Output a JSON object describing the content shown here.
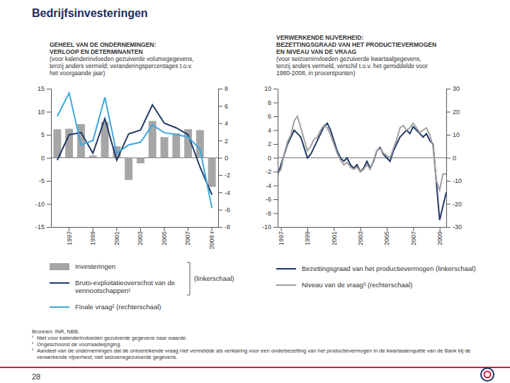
{
  "page": {
    "title": "Bedrijfsinvesteringen",
    "sources": "Bronnen: INR, NBB.",
    "footnotes": [
      {
        "marker": "¹",
        "text": "Niet voor kalenderinvloeden gezuiverde gegevens naar waarde."
      },
      {
        "marker": "²",
        "text": "Ongeschoond de voorraadwijziging."
      },
      {
        "marker": "³",
        "text": "Aandeel van de ondernemingen dat de ontoereikende vraag niet vermeldde als verklaring voor een onderbezetting van het productievermogen in de kwartaalenquête van de Bank bij de verwerkende nijverheid; niet seizoensgezuiverde gegevens."
      }
    ],
    "page_number": 28
  },
  "chart_data": [
    {
      "type": "bar",
      "title": [
        "GEHEEL VAN DE ONDERNEMINGEN:",
        "VERLOOP EN DETERMINANTEN"
      ],
      "subtitle": [
        "(voor kalenderinvloeden gezuiverde volumegegevens,",
        "tenzij anders vermeld; veranderingspercentages t.o.v.",
        "het voorgaande jaar)"
      ],
      "categories": [
        null,
        "1997",
        null,
        "1999",
        null,
        "2001",
        null,
        "2003",
        null,
        "2005",
        null,
        "2007",
        null,
        "2009 r"
      ],
      "ylim": [
        -15,
        15
      ],
      "yticks": [
        -15,
        -10,
        -5,
        0,
        5,
        10,
        15
      ],
      "y2lim": [
        -8,
        8
      ],
      "y2ticks": [
        -8,
        -6,
        -4,
        -2,
        0,
        2,
        4,
        6,
        8
      ],
      "annotations": [
        "(linkerschaal)"
      ],
      "series": [
        {
          "name": "Investeringen",
          "type": "bar",
          "color": "#a6a6a6",
          "values": [
            6.2,
            6.3,
            7.3,
            0.5,
            7.8,
            2.5,
            -4.8,
            -1.2,
            8.0,
            4.5,
            5.3,
            6.2,
            6.0,
            -6.3
          ]
        },
        {
          "name": "Bruto-exploitatieoverschot van de vennootschappen¹",
          "type": "line",
          "color": "#1f3a68",
          "values": [
            -0.5,
            5.0,
            5.5,
            1.0,
            8.5,
            -0.5,
            5.2,
            6.0,
            11.5,
            7.5,
            6.5,
            5.0,
            -2.0,
            -8.0
          ]
        },
        {
          "name": "Finale vraag² (rechterschaal)",
          "type": "line",
          "color": "#3da8dc",
          "axis": "y2",
          "values": [
            4.8,
            7.5,
            1.5,
            2.0,
            7.0,
            0.5,
            1.5,
            1.8,
            3.8,
            2.9,
            2.7,
            2.4,
            1.0,
            -5.8
          ]
        }
      ]
    },
    {
      "type": "line",
      "title": [
        "VERWERKENDE NIJVERHEID:",
        "BEZETTINGSGRAAD VAN HET PRODUCTIEVERMOGEN",
        "EN NIVEAU VAN DE VRAAG"
      ],
      "subtitle": [
        "(voor seizoeninvloeden gezuiverde kwartaalgegevens,",
        "tenzij anders vermeld, verschil t.o.v. het gemiddelde voor",
        "1980-2008, in procentpunten)"
      ],
      "categories": [
        null,
        "1997",
        null,
        null,
        null,
        null,
        null,
        null,
        null,
        "1999",
        null,
        null,
        null,
        null,
        null,
        null,
        null,
        "2001",
        null,
        null,
        null,
        null,
        null,
        null,
        null,
        "2003",
        null,
        null,
        null,
        null,
        null,
        null,
        null,
        "2005",
        null,
        null,
        null,
        null,
        null,
        null,
        null,
        "2007",
        null,
        null,
        null,
        null,
        null,
        null,
        null,
        "2009",
        null,
        null
      ],
      "ylim": [
        -10,
        10
      ],
      "yticks": [
        -10,
        -8,
        -6,
        -4,
        -2,
        0,
        2,
        4,
        6,
        8,
        10
      ],
      "y2lim": [
        -30,
        30
      ],
      "y2ticks": [
        -30,
        -20,
        -10,
        0,
        10,
        20,
        30
      ],
      "series": [
        {
          "name": "Bezettingsgraad van het productievermogen (linkerschaal)",
          "type": "line",
          "color": "#1f3a68",
          "values": [
            -2.5,
            -1.0,
            0.5,
            2.0,
            3.0,
            4.0,
            3.5,
            3.0,
            1.5,
            0.0,
            0.5,
            1.5,
            2.5,
            3.5,
            4.5,
            5.0,
            4.0,
            2.5,
            1.0,
            0.0,
            -0.5,
            0.0,
            -1.0,
            -1.5,
            -1.0,
            -2.0,
            -1.5,
            -0.5,
            -1.5,
            -0.5,
            1.0,
            1.5,
            0.5,
            0.0,
            -0.5,
            1.0,
            2.0,
            3.0,
            3.5,
            4.0,
            3.5,
            4.5,
            4.0,
            3.5,
            3.0,
            3.5,
            2.5,
            2.0,
            -3.5,
            -9.0,
            -7.0,
            -5.0
          ]
        },
        {
          "name": "Niveau van de vraag³ (rechterschaal)",
          "type": "line",
          "color": "#a0a0a0",
          "axis": "y2",
          "values": [
            -7,
            -5,
            2,
            7,
            10,
            16,
            18,
            13,
            8,
            3,
            5,
            8,
            9,
            12,
            14,
            13,
            10,
            6,
            2,
            -1,
            -3,
            -2,
            -4,
            -5,
            -4,
            -6,
            -5,
            -3,
            -5,
            -1,
            3,
            4,
            2,
            1,
            0,
            4,
            8,
            13,
            14,
            12,
            13,
            15,
            13,
            11,
            12,
            13,
            10,
            5,
            -10,
            -14,
            -7,
            -7
          ]
        }
      ]
    }
  ]
}
